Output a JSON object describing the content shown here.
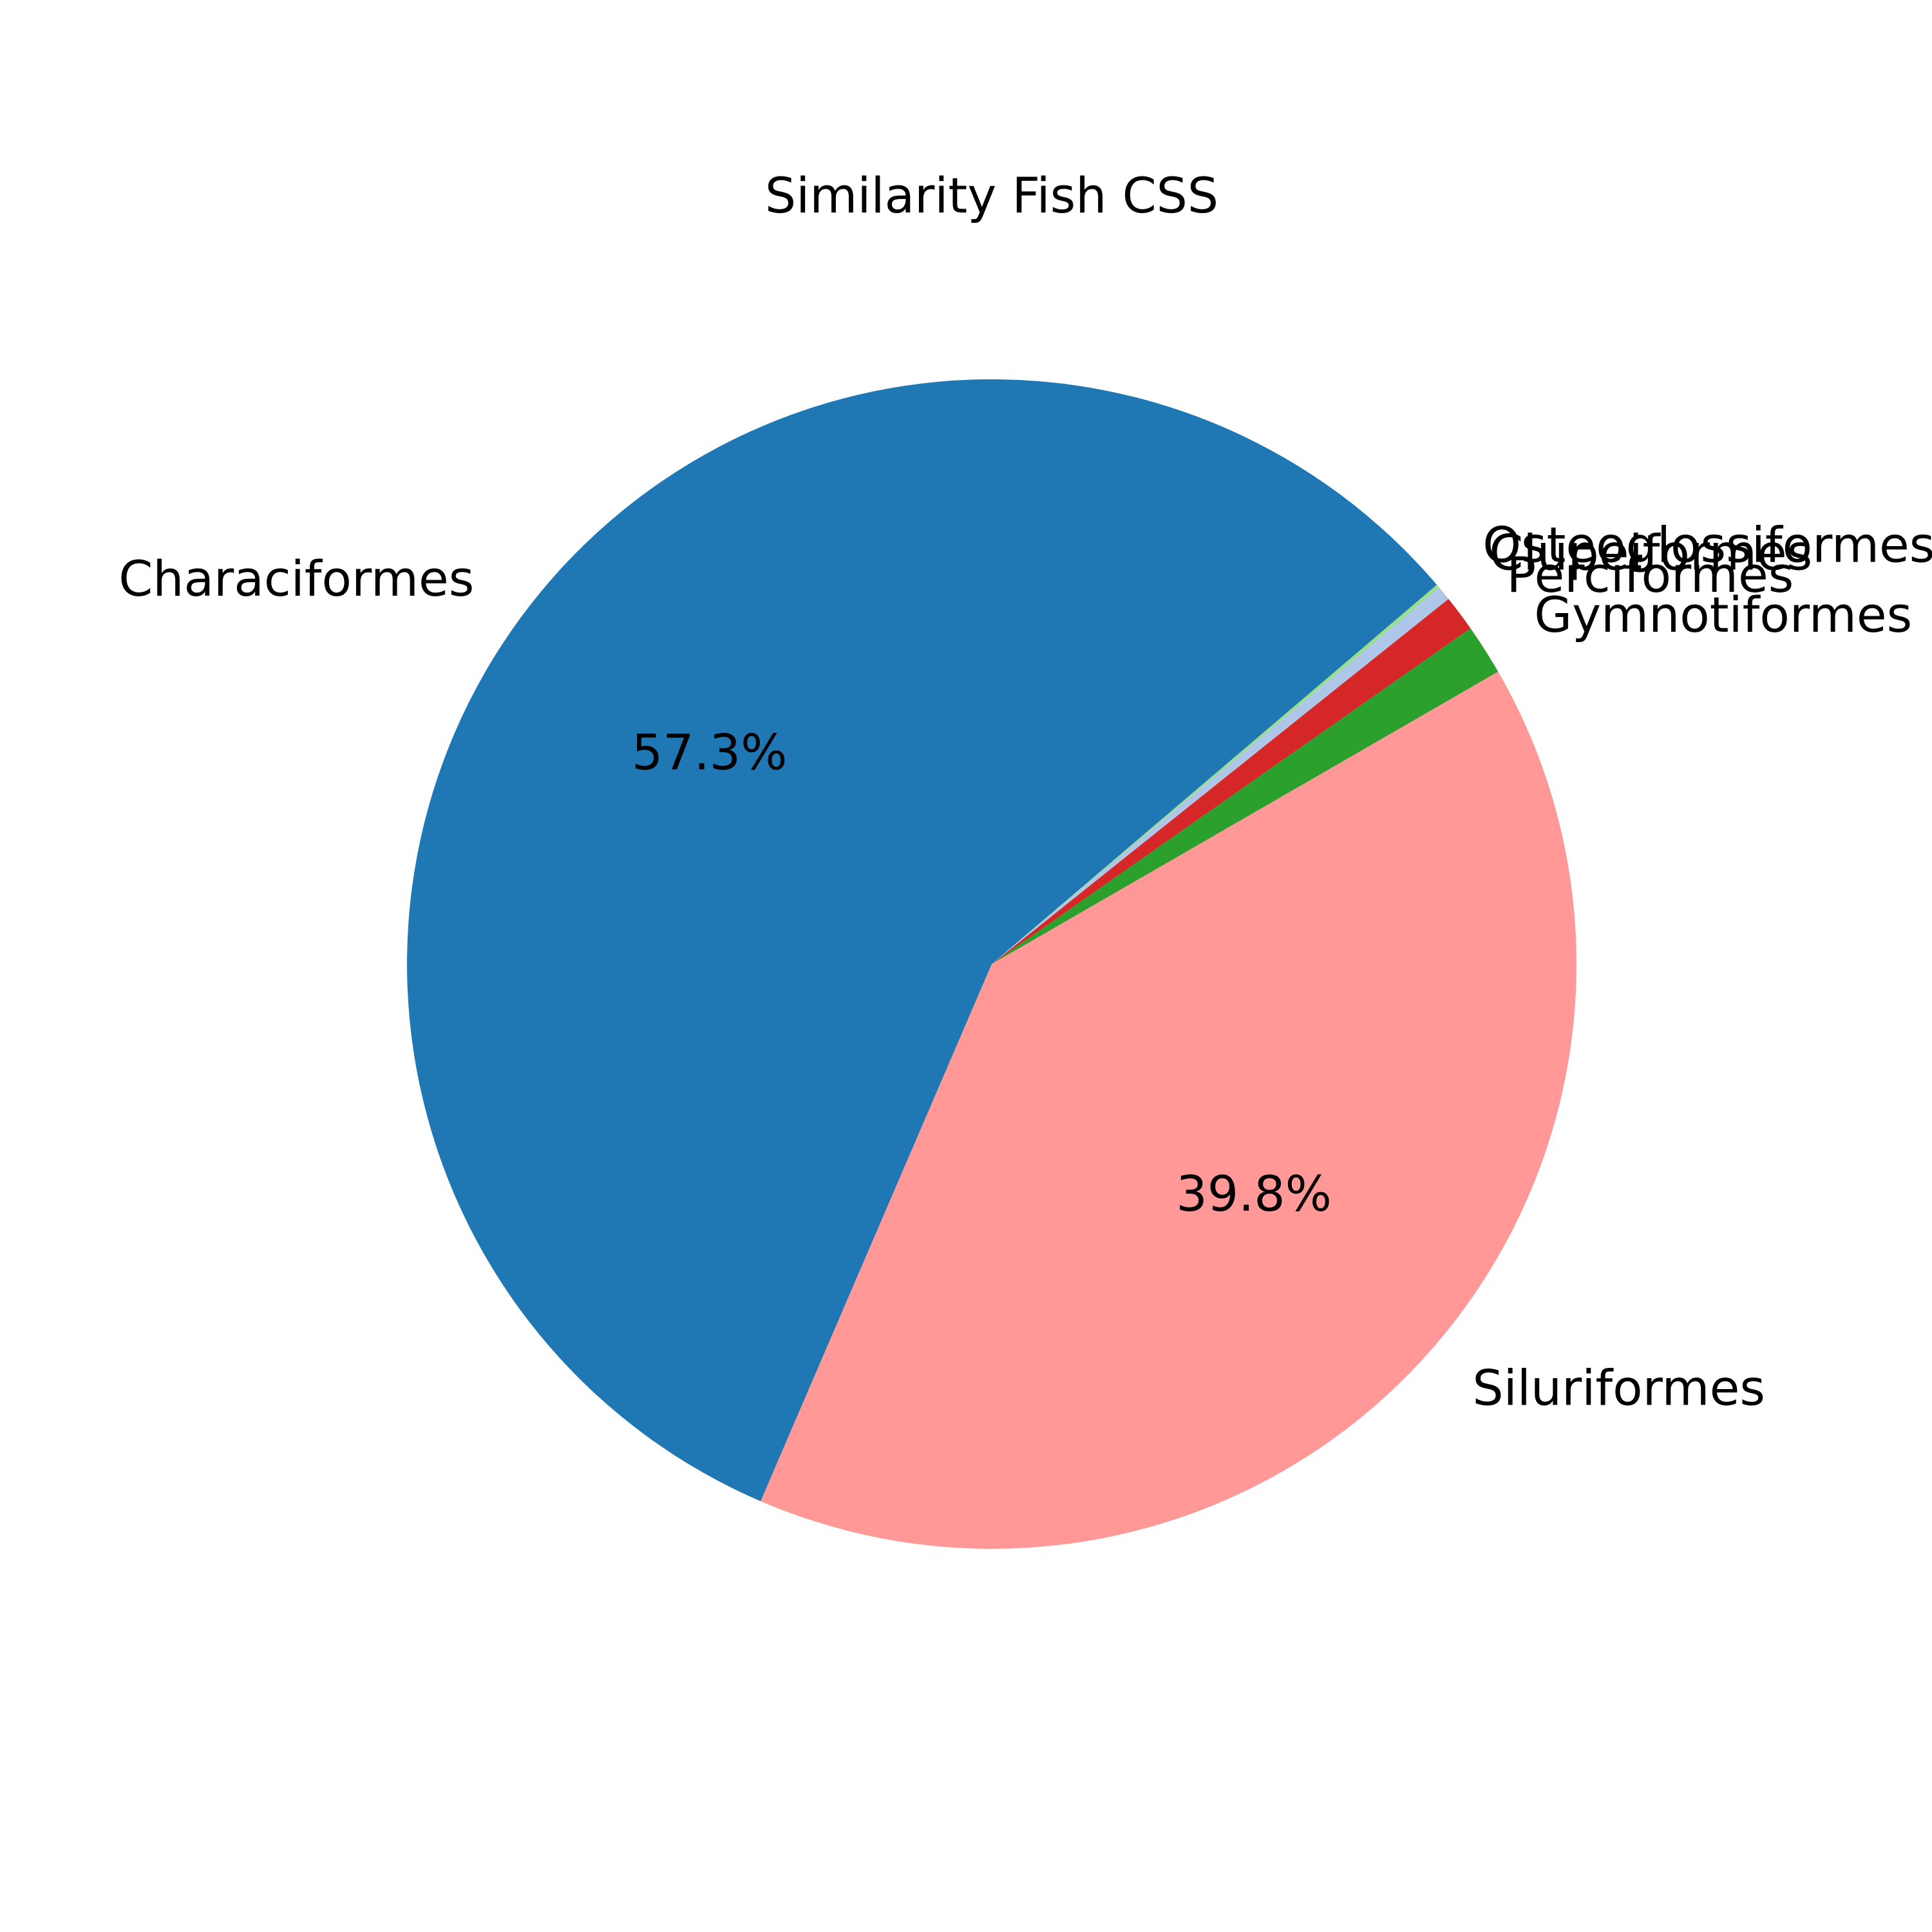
{
  "chart_data": {
    "type": "pie",
    "title": "Similarity Fish CSS",
    "start_angle_deg": 30,
    "direction": "counterclockwise",
    "legend": "none",
    "slices": [
      {
        "label": "Gymnotiformes",
        "value": 1.4,
        "color": "#2ca02c",
        "pct_label": ""
      },
      {
        "label": "Perciformes",
        "value": 1.0,
        "color": "#d62728",
        "pct_label": ""
      },
      {
        "label": "Clupeiformes",
        "value": 0.4,
        "color": "#aec7e8",
        "pct_label": ""
      },
      {
        "label": "Osteoglossiformes",
        "value": 0.1,
        "color": "#98df8a",
        "pct_label": ""
      },
      {
        "label": "Characiformes",
        "value": 57.3,
        "color": "#1f77b4",
        "pct_label": "57.3%"
      },
      {
        "label": "Siluriformes",
        "value": 39.8,
        "color": "#ff9896",
        "pct_label": "39.8%"
      }
    ]
  }
}
